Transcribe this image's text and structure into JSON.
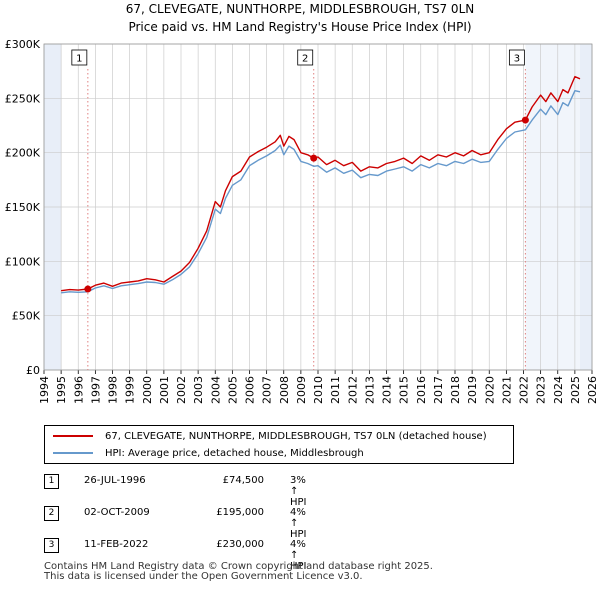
{
  "titles": {
    "line1": "67, CLEVEGATE, NUNTHORPE, MIDDLESBROUGH, TS7 0LN",
    "line2": "Price paid vs. HM Land Registry's House Price Index (HPI)"
  },
  "colors": {
    "red": "#cc0000",
    "blue": "#6699cc",
    "shade": "#e8eef8",
    "grid": "#cccccc",
    "marker_line": "#e08080"
  },
  "chart_data": {
    "type": "line",
    "title": "Price paid vs. HM Land Registry's House Price Index (HPI)",
    "xlim": [
      1994,
      2026
    ],
    "ylim": [
      0,
      300000
    ],
    "x_ticks": [
      "1994",
      "1995",
      "1996",
      "1997",
      "1998",
      "1999",
      "2000",
      "2001",
      "2002",
      "2003",
      "2004",
      "2005",
      "2006",
      "2007",
      "2008",
      "2009",
      "2010",
      "2011",
      "2012",
      "2013",
      "2014",
      "2015",
      "2016",
      "2017",
      "2018",
      "2019",
      "2020",
      "2021",
      "2022",
      "2023",
      "2024",
      "2025",
      "2026"
    ],
    "y_ticks": [
      {
        "value": 0,
        "label": "£0"
      },
      {
        "value": 50000,
        "label": "£50K"
      },
      {
        "value": 100000,
        "label": "£100K"
      },
      {
        "value": 150000,
        "label": "£150K"
      },
      {
        "value": 200000,
        "label": "£200K"
      },
      {
        "value": 250000,
        "label": "£250K"
      },
      {
        "value": 300000,
        "label": "£300K"
      }
    ],
    "shaded_ranges": [
      [
        1994,
        1995
      ],
      [
        2025.3,
        2026
      ]
    ],
    "series": [
      {
        "name": "67, CLEVEGATE, NUNTHORPE, MIDDLESBROUGH, TS7 0LN (detached house)",
        "color": "#cc0000",
        "x": [
          1995.0,
          1995.5,
          1996.0,
          1996.56,
          1997.0,
          1997.5,
          1998.0,
          1998.5,
          1999.0,
          1999.5,
          2000.0,
          2000.5,
          2001.0,
          2001.5,
          2002.0,
          2002.5,
          2003.0,
          2003.5,
          2004.0,
          2004.3,
          2004.6,
          2005.0,
          2005.5,
          2006.0,
          2006.5,
          2007.0,
          2007.5,
          2007.8,
          2008.0,
          2008.3,
          2008.6,
          2009.0,
          2009.4,
          2009.75,
          2010.0,
          2010.5,
          2011.0,
          2011.5,
          2012.0,
          2012.5,
          2013.0,
          2013.5,
          2014.0,
          2014.5,
          2015.0,
          2015.5,
          2016.0,
          2016.5,
          2017.0,
          2017.5,
          2018.0,
          2018.5,
          2019.0,
          2019.5,
          2020.0,
          2020.5,
          2021.0,
          2021.5,
          2022.11,
          2022.5,
          2023.0,
          2023.3,
          2023.6,
          2024.0,
          2024.3,
          2024.6,
          2025.0,
          2025.3
        ],
        "y": [
          73000,
          74000,
          73500,
          74500,
          78000,
          80000,
          77000,
          80000,
          81000,
          82000,
          84000,
          83000,
          81000,
          86000,
          91000,
          99000,
          112000,
          128000,
          155000,
          150000,
          165000,
          178000,
          183000,
          196000,
          201000,
          205000,
          210000,
          216000,
          206000,
          215000,
          212000,
          200000,
          198000,
          195000,
          196000,
          189000,
          193000,
          188000,
          191000,
          183000,
          187000,
          186000,
          190000,
          192000,
          195000,
          190000,
          197000,
          193000,
          198000,
          196000,
          200000,
          197000,
          202000,
          198000,
          200000,
          212000,
          222000,
          228000,
          230000,
          242000,
          253000,
          247000,
          255000,
          247000,
          258000,
          255000,
          270000,
          268000
        ]
      },
      {
        "name": "HPI: Average price, detached house, Middlesbrough",
        "color": "#6699cc",
        "x": [
          1995.0,
          1995.5,
          1996.0,
          1996.56,
          1997.0,
          1997.5,
          1998.0,
          1998.5,
          1999.0,
          1999.5,
          2000.0,
          2000.5,
          2001.0,
          2001.5,
          2002.0,
          2002.5,
          2003.0,
          2003.5,
          2004.0,
          2004.3,
          2004.6,
          2005.0,
          2005.5,
          2006.0,
          2006.5,
          2007.0,
          2007.5,
          2007.8,
          2008.0,
          2008.3,
          2008.6,
          2009.0,
          2009.4,
          2009.75,
          2010.0,
          2010.5,
          2011.0,
          2011.5,
          2012.0,
          2012.5,
          2013.0,
          2013.5,
          2014.0,
          2014.5,
          2015.0,
          2015.5,
          2016.0,
          2016.5,
          2017.0,
          2017.5,
          2018.0,
          2018.5,
          2019.0,
          2019.5,
          2020.0,
          2020.5,
          2021.0,
          2021.5,
          2022.11,
          2022.5,
          2023.0,
          2023.3,
          2023.6,
          2024.0,
          2024.3,
          2024.6,
          2025.0,
          2025.3
        ],
        "y": [
          71000,
          72000,
          71500,
          72000,
          75500,
          77500,
          75000,
          77500,
          78500,
          79500,
          81000,
          80500,
          79000,
          83000,
          88000,
          95000,
          107000,
          122000,
          148000,
          144000,
          158000,
          170000,
          175000,
          188000,
          193000,
          197000,
          202000,
          207000,
          198000,
          206000,
          203000,
          192000,
          190000,
          187500,
          188000,
          182000,
          186000,
          181000,
          184000,
          177000,
          180000,
          179000,
          183000,
          185000,
          187000,
          183000,
          189000,
          186000,
          190000,
          188000,
          192000,
          190000,
          194000,
          191000,
          192000,
          203000,
          213000,
          219000,
          221000,
          230000,
          240000,
          235000,
          243000,
          235000,
          246000,
          243000,
          257000,
          256000
        ]
      }
    ],
    "sales": [
      {
        "label": "1",
        "x": 1996.56,
        "y": 74500
      },
      {
        "label": "2",
        "x": 2009.75,
        "y": 195000
      },
      {
        "label": "3",
        "x": 2022.11,
        "y": 230000
      }
    ]
  },
  "legend": {
    "items": [
      {
        "label": "67, CLEVEGATE, NUNTHORPE, MIDDLESBROUGH, TS7 0LN (detached house)",
        "color": "#cc0000"
      },
      {
        "label": "HPI: Average price, detached house, Middlesbrough",
        "color": "#6699cc"
      }
    ]
  },
  "sales_table": [
    {
      "num": "1",
      "date": "26-JUL-1996",
      "price": "£74,500",
      "hpi": "3% ↑ HPI"
    },
    {
      "num": "2",
      "date": "02-OCT-2009",
      "price": "£195,000",
      "hpi": "4% ↑ HPI"
    },
    {
      "num": "3",
      "date": "11-FEB-2022",
      "price": "£230,000",
      "hpi": "4% ↑ HPI"
    }
  ],
  "footer": {
    "line1": "Contains HM Land Registry data © Crown copyright and database right 2025.",
    "line2": "This data is licensed under the Open Government Licence v3.0."
  }
}
